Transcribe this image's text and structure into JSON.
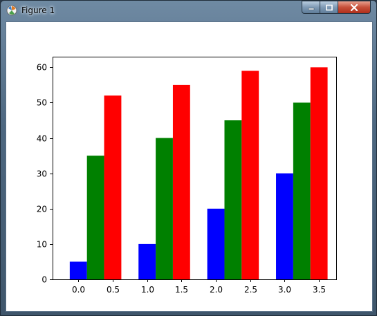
{
  "window": {
    "title": "Figure 1",
    "icons": {
      "app": "figure-app-icon",
      "minimize": "minimize-icon",
      "maximize": "maximize-icon",
      "close": "close-icon"
    }
  },
  "chart_data": {
    "type": "bar",
    "x_ticks": [
      "0.0",
      "0.5",
      "1.0",
      "1.5",
      "2.0",
      "2.5",
      "3.0",
      "3.5"
    ],
    "x_tick_values": [
      0.0,
      0.5,
      1.0,
      1.5,
      2.0,
      2.5,
      3.0,
      3.5
    ],
    "y_ticks": [
      "0",
      "10",
      "20",
      "30",
      "40",
      "50",
      "60"
    ],
    "y_tick_values": [
      0,
      10,
      20,
      30,
      40,
      50,
      60
    ],
    "xlim": [
      -0.375,
      3.75
    ],
    "ylim": [
      0,
      63
    ],
    "bar_width": 0.25,
    "series": [
      {
        "color": "#0000ff",
        "x": [
          0.0,
          1.0,
          2.0,
          3.0
        ],
        "values": [
          5,
          10,
          20,
          30
        ]
      },
      {
        "color": "#008000",
        "x": [
          0.25,
          1.25,
          2.25,
          3.25
        ],
        "values": [
          35,
          40,
          45,
          50
        ]
      },
      {
        "color": "#ff0000",
        "x": [
          0.5,
          1.5,
          2.5,
          3.5
        ],
        "values": [
          52,
          55,
          59,
          60
        ]
      }
    ],
    "title": "",
    "xlabel": "",
    "ylabel": "",
    "grid": false
  }
}
